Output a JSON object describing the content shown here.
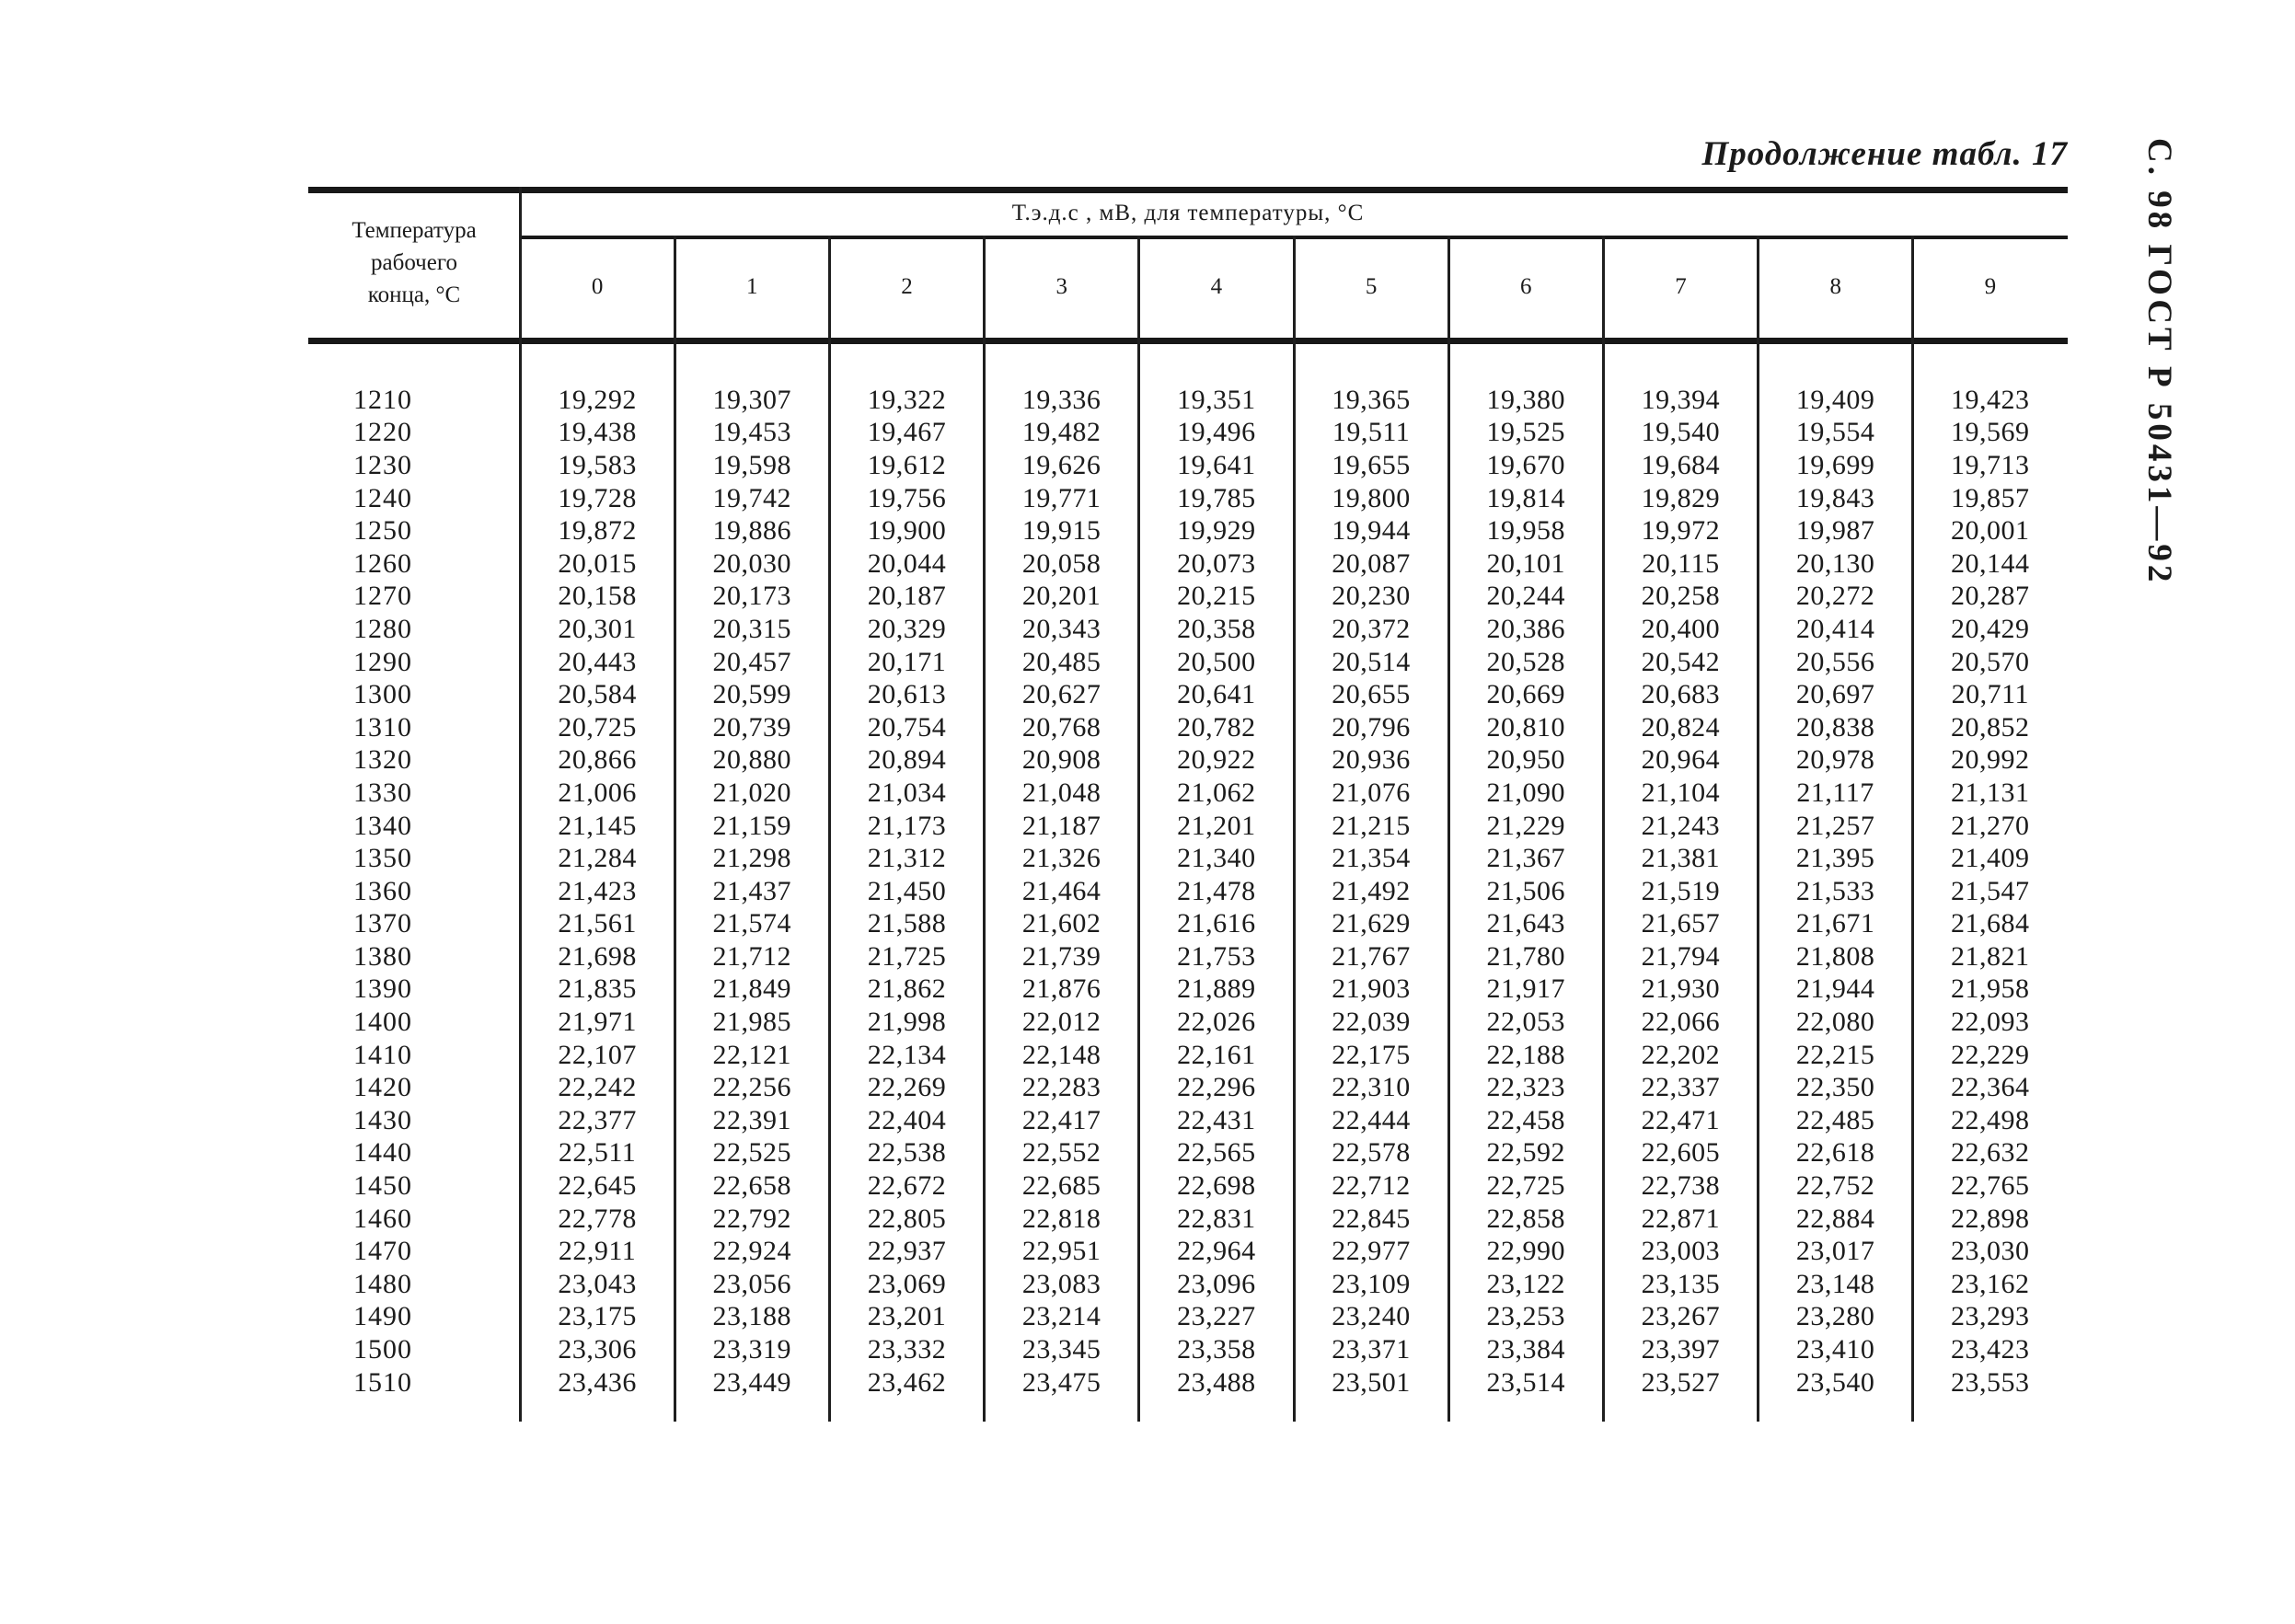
{
  "page": {
    "continuation_title": "Продолжение табл. 17",
    "side_label": "С. 98 ГОСТ Р 50431—92"
  },
  "table": {
    "stub_header": "Температура\nрабочего\nконца, °С",
    "span_header": "Т.э.д.с , мВ, для температуры, °С",
    "column_headers": [
      "0",
      "1",
      "2",
      "3",
      "4",
      "5",
      "6",
      "7",
      "8",
      "9"
    ],
    "rows": [
      {
        "temp": "1210",
        "values": [
          "19,292",
          "19,307",
          "19,322",
          "19,336",
          "19,351",
          "19,365",
          "19,380",
          "19,394",
          "19,409",
          "19,423"
        ]
      },
      {
        "temp": "1220",
        "values": [
          "19,438",
          "19,453",
          "19,467",
          "19,482",
          "19,496",
          "19,511",
          "19,525",
          "19,540",
          "19,554",
          "19,569"
        ]
      },
      {
        "temp": "1230",
        "values": [
          "19,583",
          "19,598",
          "19,612",
          "19,626",
          "19,641",
          "19,655",
          "19,670",
          "19,684",
          "19,699",
          "19,713"
        ]
      },
      {
        "temp": "1240",
        "values": [
          "19,728",
          "19,742",
          "19,756",
          "19,771",
          "19,785",
          "19,800",
          "19,814",
          "19,829",
          "19,843",
          "19,857"
        ]
      },
      {
        "temp": "1250",
        "values": [
          "19,872",
          "19,886",
          "19,900",
          "19,915",
          "19,929",
          "19,944",
          "19,958",
          "19,972",
          "19,987",
          "20,001"
        ]
      },
      {
        "temp": "1260",
        "values": [
          "20,015",
          "20,030",
          "20,044",
          "20,058",
          "20,073",
          "20,087",
          "20,101",
          "20,115",
          "20,130",
          "20,144"
        ]
      },
      {
        "temp": "1270",
        "values": [
          "20,158",
          "20,173",
          "20,187",
          "20,201",
          "20,215",
          "20,230",
          "20,244",
          "20,258",
          "20,272",
          "20,287"
        ]
      },
      {
        "temp": "1280",
        "values": [
          "20,301",
          "20,315",
          "20,329",
          "20,343",
          "20,358",
          "20,372",
          "20,386",
          "20,400",
          "20,414",
          "20,429"
        ]
      },
      {
        "temp": "1290",
        "values": [
          "20,443",
          "20,457",
          "20,171",
          "20,485",
          "20,500",
          "20,514",
          "20,528",
          "20,542",
          "20,556",
          "20,570"
        ]
      },
      {
        "temp": "1300",
        "values": [
          "20,584",
          "20,599",
          "20,613",
          "20,627",
          "20,641",
          "20,655",
          "20,669",
          "20,683",
          "20,697",
          "20,711"
        ]
      },
      {
        "temp": "1310",
        "values": [
          "20,725",
          "20,739",
          "20,754",
          "20,768",
          "20,782",
          "20,796",
          "20,810",
          "20,824",
          "20,838",
          "20,852"
        ]
      },
      {
        "temp": "1320",
        "values": [
          "20,866",
          "20,880",
          "20,894",
          "20,908",
          "20,922",
          "20,936",
          "20,950",
          "20,964",
          "20,978",
          "20,992"
        ]
      },
      {
        "temp": "1330",
        "values": [
          "21,006",
          "21,020",
          "21,034",
          "21,048",
          "21,062",
          "21,076",
          "21,090",
          "21,104",
          "21,117",
          "21,131"
        ]
      },
      {
        "temp": "1340",
        "values": [
          "21,145",
          "21,159",
          "21,173",
          "21,187",
          "21,201",
          "21,215",
          "21,229",
          "21,243",
          "21,257",
          "21,270"
        ]
      },
      {
        "temp": "1350",
        "values": [
          "21,284",
          "21,298",
          "21,312",
          "21,326",
          "21,340",
          "21,354",
          "21,367",
          "21,381",
          "21,395",
          "21,409"
        ]
      },
      {
        "temp": "1360",
        "values": [
          "21,423",
          "21,437",
          "21,450",
          "21,464",
          "21,478",
          "21,492",
          "21,506",
          "21,519",
          "21,533",
          "21,547"
        ]
      },
      {
        "temp": "1370",
        "values": [
          "21,561",
          "21,574",
          "21,588",
          "21,602",
          "21,616",
          "21,629",
          "21,643",
          "21,657",
          "21,671",
          "21,684"
        ]
      },
      {
        "temp": "1380",
        "values": [
          "21,698",
          "21,712",
          "21,725",
          "21,739",
          "21,753",
          "21,767",
          "21,780",
          "21,794",
          "21,808",
          "21,821"
        ]
      },
      {
        "temp": "1390",
        "values": [
          "21,835",
          "21,849",
          "21,862",
          "21,876",
          "21,889",
          "21,903",
          "21,917",
          "21,930",
          "21,944",
          "21,958"
        ]
      },
      {
        "temp": "1400",
        "values": [
          "21,971",
          "21,985",
          "21,998",
          "22,012",
          "22,026",
          "22,039",
          "22,053",
          "22,066",
          "22,080",
          "22,093"
        ]
      },
      {
        "temp": "1410",
        "values": [
          "22,107",
          "22,121",
          "22,134",
          "22,148",
          "22,161",
          "22,175",
          "22,188",
          "22,202",
          "22,215",
          "22,229"
        ]
      },
      {
        "temp": "1420",
        "values": [
          "22,242",
          "22,256",
          "22,269",
          "22,283",
          "22,296",
          "22,310",
          "22,323",
          "22,337",
          "22,350",
          "22,364"
        ]
      },
      {
        "temp": "1430",
        "values": [
          "22,377",
          "22,391",
          "22,404",
          "22,417",
          "22,431",
          "22,444",
          "22,458",
          "22,471",
          "22,485",
          "22,498"
        ]
      },
      {
        "temp": "1440",
        "values": [
          "22,511",
          "22,525",
          "22,538",
          "22,552",
          "22,565",
          "22,578",
          "22,592",
          "22,605",
          "22,618",
          "22,632"
        ]
      },
      {
        "temp": "1450",
        "values": [
          "22,645",
          "22,658",
          "22,672",
          "22,685",
          "22,698",
          "22,712",
          "22,725",
          "22,738",
          "22,752",
          "22,765"
        ]
      },
      {
        "temp": "1460",
        "values": [
          "22,778",
          "22,792",
          "22,805",
          "22,818",
          "22,831",
          "22,845",
          "22,858",
          "22,871",
          "22,884",
          "22,898"
        ]
      },
      {
        "temp": "1470",
        "values": [
          "22,911",
          "22,924",
          "22,937",
          "22,951",
          "22,964",
          "22,977",
          "22,990",
          "23,003",
          "23,017",
          "23,030"
        ]
      },
      {
        "temp": "1480",
        "values": [
          "23,043",
          "23,056",
          "23,069",
          "23,083",
          "23,096",
          "23,109",
          "23,122",
          "23,135",
          "23,148",
          "23,162"
        ]
      },
      {
        "temp": "1490",
        "values": [
          "23,175",
          "23,188",
          "23,201",
          "23,214",
          "23,227",
          "23,240",
          "23,253",
          "23,267",
          "23,280",
          "23,293"
        ]
      },
      {
        "temp": "1500",
        "values": [
          "23,306",
          "23,319",
          "23,332",
          "23,345",
          "23,358",
          "23,371",
          "23,384",
          "23,397",
          "23,410",
          "23,423"
        ]
      },
      {
        "temp": "1510",
        "values": [
          "23,436",
          "23,449",
          "23,462",
          "23,475",
          "23,488",
          "23,501",
          "23,514",
          "23,527",
          "23,540",
          "23,553"
        ]
      }
    ]
  }
}
